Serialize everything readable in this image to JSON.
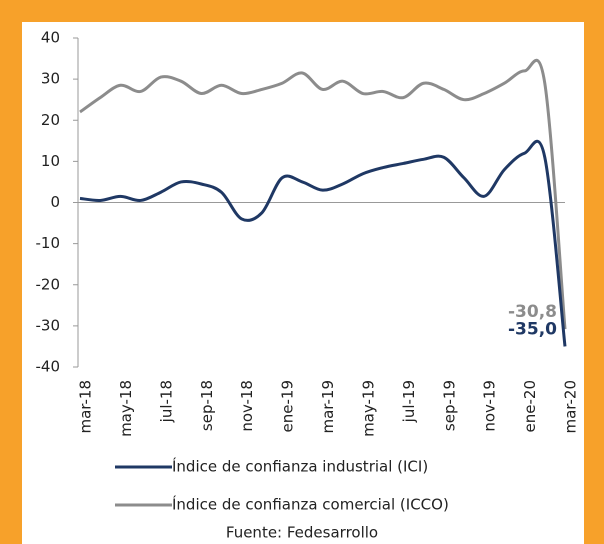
{
  "chart_data": {
    "type": "line",
    "categories": [
      "mar-18",
      null,
      "may-18",
      null,
      "jul-18",
      null,
      "sep-18",
      null,
      "nov-18",
      null,
      "ene-19",
      null,
      "mar-19",
      null,
      "may-19",
      null,
      "jul-19",
      null,
      "sep-19",
      null,
      "nov-19",
      null,
      "ene-20",
      null,
      "mar-20"
    ],
    "series": [
      {
        "name": "Índice de confianza industrial (ICI)",
        "color": "#1F3864",
        "values": [
          1,
          0.5,
          1.5,
          0.5,
          2.5,
          5,
          4.5,
          2.5,
          -4,
          -2.5,
          6,
          5,
          3,
          4.5,
          7,
          8.5,
          9.5,
          10.5,
          11,
          6,
          1.5,
          8,
          12,
          11,
          -35
        ],
        "value_labels": [
          null,
          null,
          null,
          null,
          null,
          null,
          null,
          null,
          null,
          null,
          null,
          null,
          null,
          null,
          null,
          null,
          null,
          null,
          null,
          null,
          null,
          null,
          null,
          null,
          "-35,0"
        ]
      },
      {
        "name": "Índice de confianza comercial (ICCO)",
        "color": "#8C8C8C",
        "values": [
          22,
          25.5,
          28.5,
          27,
          30.5,
          29.5,
          26.5,
          28.5,
          26.5,
          27.5,
          29,
          31.5,
          27.5,
          29.5,
          26.5,
          27,
          25.5,
          29,
          27.5,
          25,
          26.5,
          29,
          32,
          29,
          -30.8
        ],
        "value_labels": [
          null,
          null,
          null,
          null,
          null,
          null,
          null,
          null,
          null,
          null,
          null,
          null,
          null,
          null,
          null,
          null,
          null,
          null,
          null,
          null,
          null,
          null,
          null,
          null,
          "-30,8"
        ]
      }
    ],
    "ylim": [
      -40,
      40
    ],
    "yticks": [
      40,
      30,
      20,
      10,
      0,
      -10,
      -20,
      -30,
      -40
    ],
    "source": "Fuente: Fedesarrollo"
  }
}
